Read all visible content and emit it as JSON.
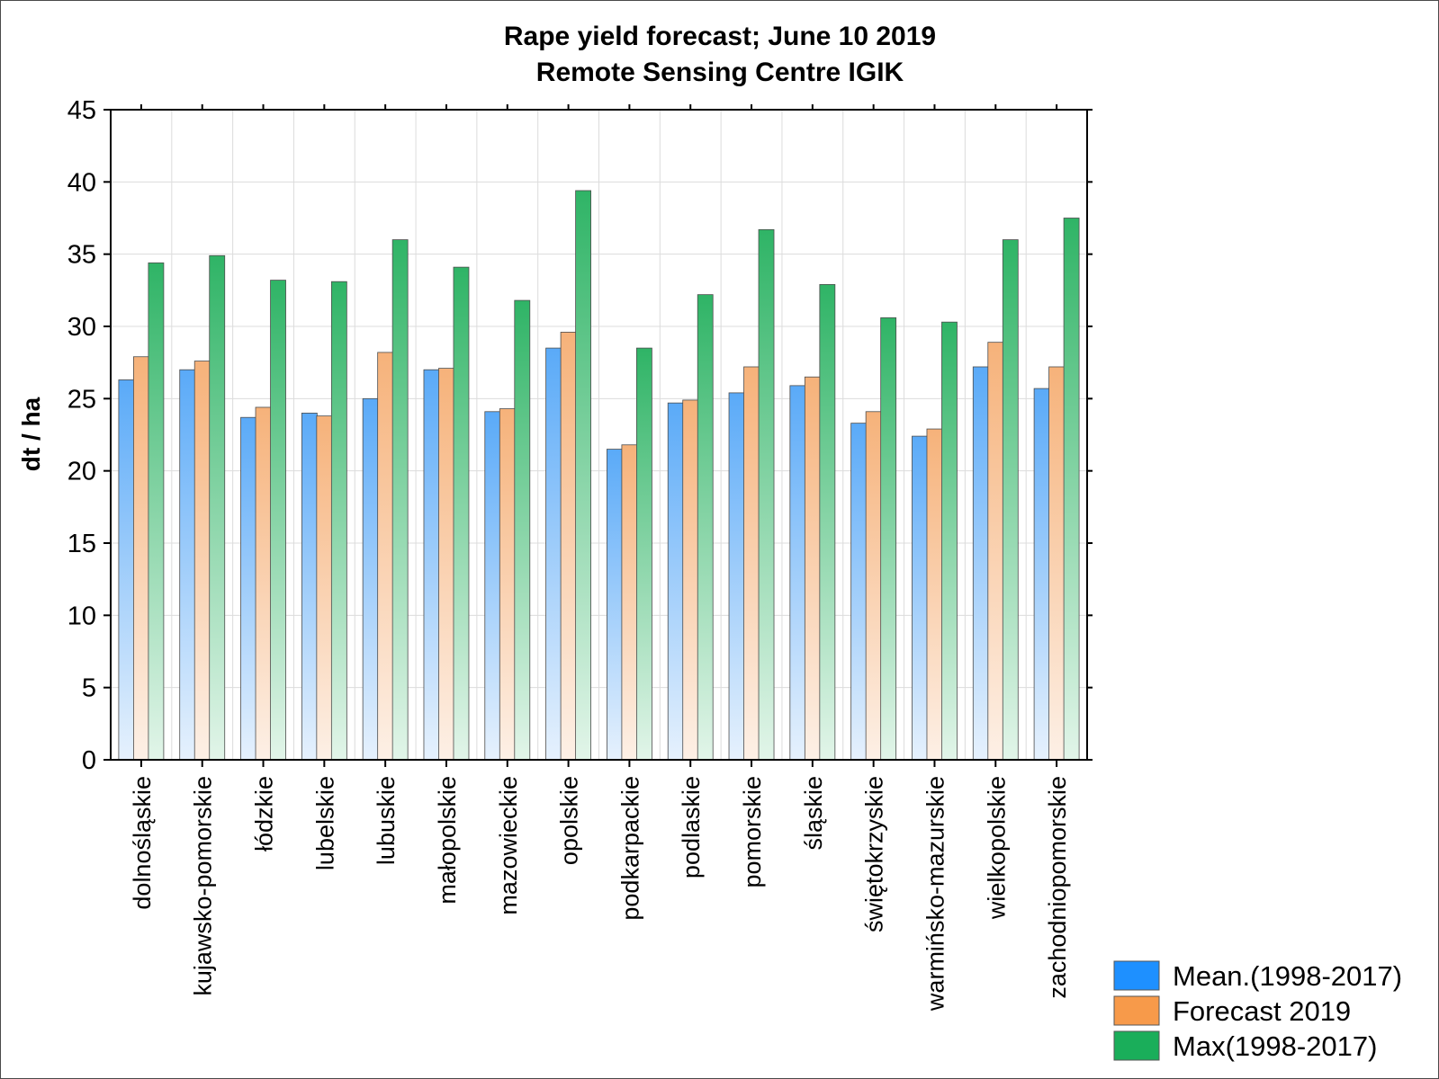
{
  "chart_data": {
    "type": "bar",
    "title": "Rape yield forecast; June 10 2019",
    "subtitle": "Remote Sensing Centre IGIK",
    "xlabel": "",
    "ylabel": "dt / ha",
    "ylim": [
      0,
      45
    ],
    "yticks": [
      "0",
      "5",
      "10",
      "15",
      "20",
      "25",
      "30",
      "35",
      "40",
      "45"
    ],
    "grid": true,
    "legend_position": "bottom-right",
    "categories": [
      "dolnośląskie",
      "kujawsko-pomorskie",
      "łódzkie",
      "lubelskie",
      "lubuskie",
      "małopolskie",
      "mazowieckie",
      "opolskie",
      "podkarpackie",
      "podlaskie",
      "pomorskie",
      "śląskie",
      "świętokrzyskie",
      "warmińsko-mazurskie",
      "wielkopolskie",
      "zachodniopomorskie"
    ],
    "series": [
      {
        "name": "Mean.(1998-2017)",
        "color": "#1e90ff",
        "values": [
          26.3,
          27.0,
          23.7,
          24.0,
          25.0,
          27.0,
          24.1,
          28.5,
          21.5,
          24.7,
          25.4,
          25.9,
          23.3,
          22.4,
          27.2,
          25.7
        ]
      },
      {
        "name": "Forecast 2019",
        "color": "#f79a4a",
        "values": [
          27.9,
          27.6,
          24.4,
          23.8,
          28.2,
          27.1,
          24.3,
          29.6,
          21.8,
          24.9,
          27.2,
          26.5,
          24.1,
          22.9,
          28.9,
          27.2
        ]
      },
      {
        "name": "Max(1998-2017)",
        "color": "#1aae5a",
        "values": [
          34.4,
          34.9,
          33.2,
          33.1,
          36.0,
          34.1,
          31.8,
          39.4,
          28.5,
          32.2,
          36.7,
          32.9,
          30.6,
          30.3,
          36.0,
          37.5
        ]
      }
    ]
  }
}
